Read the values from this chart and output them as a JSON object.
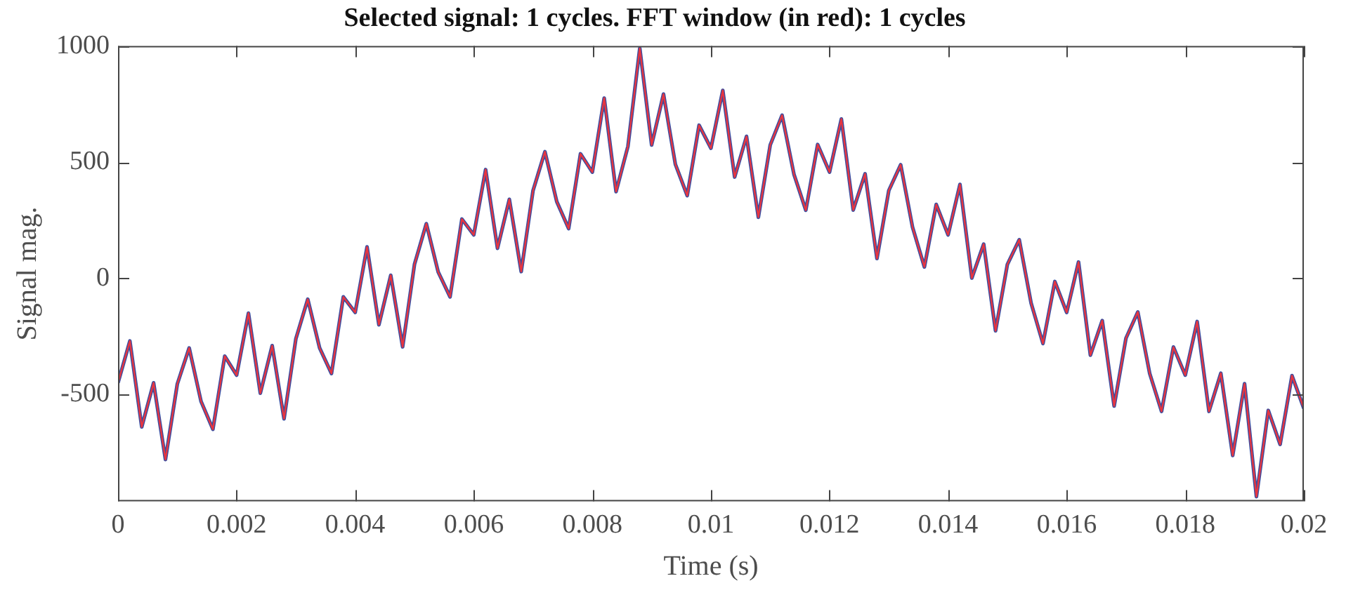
{
  "chart_data": {
    "type": "line",
    "title": "Selected signal: 1 cycles. FFT window (in red): 1 cycles",
    "xlabel": "Time (s)",
    "ylabel": "Signal mag.",
    "x": [
      0,
      0.0002,
      0.0004,
      0.0006,
      0.0008,
      0.001,
      0.0012,
      0.0014,
      0.0016,
      0.0018,
      0.002,
      0.0022,
      0.0024,
      0.0026,
      0.0028,
      0.003,
      0.0032,
      0.0034,
      0.0036,
      0.0038,
      0.004,
      0.0042,
      0.0044,
      0.0046,
      0.0048,
      0.005,
      0.0052,
      0.0054,
      0.0056,
      0.0058,
      0.006,
      0.0062,
      0.0064,
      0.0066,
      0.0068,
      0.007,
      0.0072,
      0.0074,
      0.0076,
      0.0078,
      0.008,
      0.0082,
      0.0084,
      0.0086,
      0.0088,
      0.009,
      0.0092,
      0.0094,
      0.0096,
      0.0098,
      0.01,
      0.0102,
      0.0104,
      0.0106,
      0.0108,
      0.011,
      0.0112,
      0.0114,
      0.0116,
      0.0118,
      0.012,
      0.0122,
      0.0124,
      0.0126,
      0.0128,
      0.013,
      0.0132,
      0.0134,
      0.0136,
      0.0138,
      0.014,
      0.0142,
      0.0144,
      0.0146,
      0.0148,
      0.015,
      0.0152,
      0.0154,
      0.0156,
      0.0158,
      0.016,
      0.0162,
      0.0164,
      0.0166,
      0.0168,
      0.017,
      0.0172,
      0.0174,
      0.0176,
      0.0178,
      0.018,
      0.0182,
      0.0184,
      0.0186,
      0.0188,
      0.019,
      0.0192,
      0.0194,
      0.0196,
      0.0198,
      0.02
    ],
    "series": [
      {
        "color": "#3b4ea0",
        "values": [
          -450,
          -270,
          -640,
          -450,
          -780,
          -455,
          -300,
          -530,
          -650,
          -335,
          -417,
          -150,
          -495,
          -290,
          -605,
          -260,
          -90,
          -300,
          -410,
          -80,
          -147,
          135,
          -200,
          13,
          -295,
          60,
          235,
          27,
          -80,
          255,
          187,
          468,
          129,
          340,
          29,
          378,
          545,
          330,
          214,
          536,
          457,
          776,
          373,
          568,
          990,
          574,
          793,
          491,
          356,
          659,
          560,
          809,
          436,
          611,
          263,
          574,
          702,
          448,
          293,
          576,
          457,
          686,
          294,
          450,
          85,
          378,
          489,
          220,
          49,
          318,
          187,
          404,
          1,
          147,
          -226,
          60,
          166,
          -107,
          -281,
          -14,
          -147,
          70,
          -331,
          -182,
          -550,
          -258,
          -145,
          -410,
          -573,
          -296,
          -417,
          -186,
          -573,
          -409,
          -763,
          -454,
          -940,
          -569,
          -715,
          -419,
          -560
        ]
      },
      {
        "color": "#e8353f",
        "values": [
          -450,
          -270,
          -640,
          -450,
          -780,
          -455,
          -300,
          -530,
          -650,
          -335,
          -417,
          -150,
          -495,
          -290,
          -605,
          -260,
          -90,
          -300,
          -410,
          -80,
          -147,
          135,
          -200,
          13,
          -295,
          60,
          235,
          27,
          -80,
          255,
          187,
          468,
          129,
          340,
          29,
          378,
          545,
          330,
          214,
          536,
          457,
          776,
          373,
          568,
          990,
          574,
          793,
          491,
          356,
          659,
          560,
          809,
          436,
          611,
          263,
          574,
          702,
          448,
          293,
          576,
          457,
          686,
          294,
          450,
          85,
          378,
          489,
          220,
          49,
          318,
          187,
          404,
          1,
          147,
          -226,
          60,
          166,
          -107,
          -281,
          -14,
          -147,
          70,
          -331,
          -182,
          -550,
          -258,
          -145,
          -410,
          -573,
          -296,
          -417,
          -186,
          -573,
          -409,
          -763,
          -454,
          -940,
          -569,
          -715,
          -419,
          -560
        ]
      }
    ],
    "xlim": [
      0,
      0.02
    ],
    "xticks": [
      0,
      0.002,
      0.004,
      0.006,
      0.008,
      0.01,
      0.012,
      0.014,
      0.016,
      0.018,
      0.02
    ],
    "ylim": [
      -960,
      1000
    ],
    "yticks": [
      -500,
      0,
      500,
      1000
    ],
    "grid": false,
    "legend": false,
    "marker": "none",
    "line_style": "solid"
  }
}
